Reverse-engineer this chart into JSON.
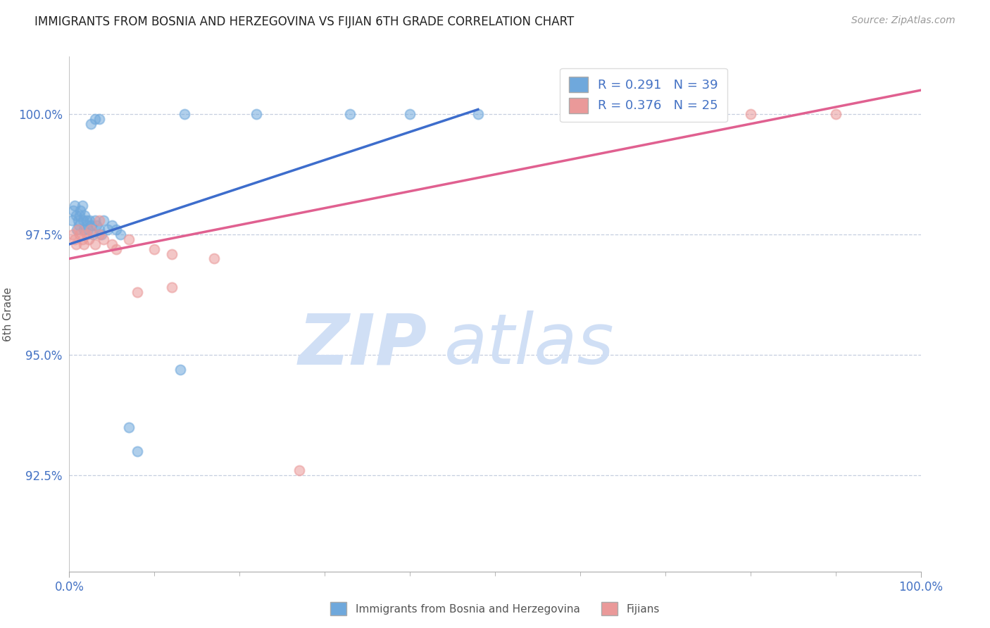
{
  "title": "IMMIGRANTS FROM BOSNIA AND HERZEGOVINA VS FIJIAN 6TH GRADE CORRELATION CHART",
  "source_text": "Source: ZipAtlas.com",
  "ylabel_label": "6th Grade",
  "y_ticks": [
    92.5,
    95.0,
    97.5,
    100.0
  ],
  "x_range": [
    0.0,
    100.0
  ],
  "y_range": [
    90.5,
    101.2
  ],
  "blue_R": 0.291,
  "blue_N": 39,
  "pink_R": 0.376,
  "pink_N": 25,
  "blue_color": "#6fa8dc",
  "pink_color": "#ea9999",
  "blue_line_color": "#3d6dcc",
  "pink_line_color": "#e06090",
  "watermark_color": "#d0dff5",
  "legend_label_blue": "Immigrants from Bosnia and Herzegovina",
  "legend_label_pink": "Fijians",
  "blue_scatter_x": [
    0.3,
    0.5,
    0.6,
    0.8,
    0.9,
    1.0,
    1.1,
    1.2,
    1.3,
    1.5,
    1.6,
    1.7,
    1.8,
    2.0,
    2.1,
    2.2,
    2.4,
    2.6,
    2.8,
    3.0,
    3.2,
    3.5,
    3.8,
    4.0,
    4.5,
    5.0,
    5.5,
    6.0,
    7.0,
    8.0,
    3.0,
    13.0,
    2.5,
    3.5,
    13.5,
    22.0,
    33.0,
    40.0,
    48.0
  ],
  "blue_scatter_y": [
    97.8,
    98.0,
    98.1,
    97.9,
    97.6,
    97.8,
    97.7,
    97.9,
    98.0,
    98.1,
    97.8,
    97.6,
    97.9,
    97.8,
    97.7,
    97.6,
    97.8,
    97.7,
    97.5,
    97.8,
    97.7,
    97.6,
    97.5,
    97.8,
    97.6,
    97.7,
    97.6,
    97.5,
    93.5,
    93.0,
    99.9,
    94.7,
    99.8,
    99.9,
    100.0,
    100.0,
    100.0,
    100.0,
    100.0
  ],
  "pink_scatter_x": [
    0.4,
    0.6,
    0.8,
    1.0,
    1.2,
    1.5,
    1.7,
    2.0,
    2.3,
    2.5,
    3.0,
    3.5,
    4.0,
    5.0,
    7.0,
    10.0,
    12.0,
    17.0,
    27.0,
    3.5,
    5.5,
    8.0,
    12.0,
    80.0,
    90.0
  ],
  "pink_scatter_y": [
    97.5,
    97.4,
    97.3,
    97.6,
    97.5,
    97.4,
    97.3,
    97.5,
    97.4,
    97.6,
    97.3,
    97.5,
    97.4,
    97.3,
    97.4,
    97.2,
    97.1,
    97.0,
    92.6,
    97.8,
    97.2,
    96.3,
    96.4,
    100.0,
    100.0
  ],
  "blue_line_x_start": 0.0,
  "blue_line_x_end": 48.0,
  "blue_line_y_start": 97.3,
  "blue_line_y_end": 100.1,
  "pink_line_x_start": 0.0,
  "pink_line_x_end": 100.0,
  "pink_line_y_start": 97.0,
  "pink_line_y_end": 100.5
}
